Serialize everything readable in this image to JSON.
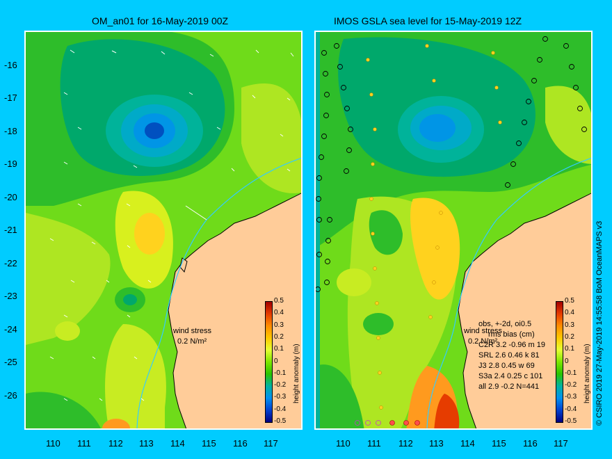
{
  "titles": {
    "left": "OM_an01 for 16-May-2019 00Z",
    "right": "IMOS GSLA sea level  for 15-May-2019 12Z"
  },
  "axes": {
    "lat_labels": [
      "-16",
      "-17",
      "-18",
      "-19",
      "-20",
      "-21",
      "-22",
      "-23",
      "-24",
      "-25",
      "-26"
    ],
    "lon_labels": [
      "110",
      "111",
      "112",
      "113",
      "114",
      "115",
      "116",
      "117"
    ]
  },
  "colorbar": {
    "title": "height anomaly (m)",
    "ticks": [
      "0.5",
      "0.4",
      "0.3",
      "0.2",
      "0.1",
      "0",
      "-0.1",
      "-0.2",
      "-0.3",
      "-0.4",
      "-0.5"
    ],
    "colors": [
      "#a30000",
      "#e63c00",
      "#ff8c00",
      "#ffc800",
      "#e6ff33",
      "#7de600",
      "#2ac400",
      "#00b3a0",
      "#0090f0",
      "#0040d0",
      "#000080"
    ]
  },
  "wind_legend": {
    "line1": "wind stress",
    "line2": "0.2 N/m²"
  },
  "obs_stats": {
    "header1": "obs, +-2d, oi0.5",
    "header2": "rms bias (cm)",
    "rows": [
      "C2R   3.2 -0.96 m 19",
      "SRL   2.6 0.46 k 81",
      "J3     2.8 0.45 w 69",
      "S3a   2.4 0.25 c 101",
      "all   2.9 -0.2 N=441"
    ]
  },
  "credit": "© CSIRO 2019   27-May-2019 14:55:58 BoM OceanMAPS v3",
  "colors": {
    "background": "#00ccff",
    "land": "#ffcc99",
    "field_base": "#6fdb1a"
  }
}
